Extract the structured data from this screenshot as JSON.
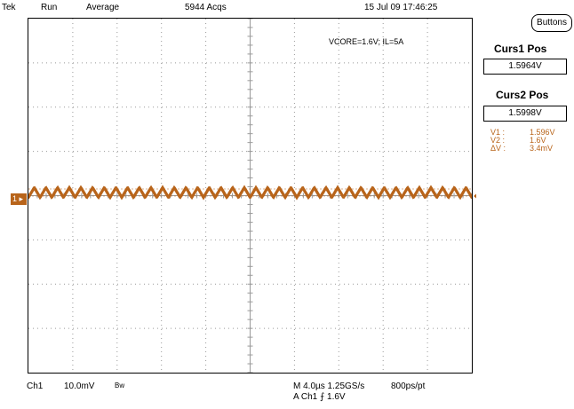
{
  "status_bar": {
    "brand": "Tek",
    "mode": "Run",
    "acquisition": "Average",
    "acq_count": "5944 Acqs",
    "timestamp": "15 Jul 09 17:46:25"
  },
  "annotation": "VCORE=1.6V; IL=5A",
  "channel_marker": "1",
  "bottom_bar": {
    "channel": "Ch1",
    "scale": "10.0mV",
    "bandwidth": "Bw",
    "timebase": "M 4.0µs 1.25GS/s",
    "record": "800ps/pt",
    "trigger": "A  Ch1  ⨍  1.6V"
  },
  "side_panel": {
    "buttons_label": "Buttons",
    "curs1_label": "Curs1 Pos",
    "curs1_value": "1.5964V",
    "curs2_label": "Curs2 Pos",
    "curs2_value": "1.5998V",
    "readouts": [
      {
        "key": "V1 :",
        "value": "1.596V"
      },
      {
        "key": "V2 :",
        "value": "1.6V"
      },
      {
        "key": "ΔV :",
        "value": "3.4mV"
      }
    ]
  },
  "colors": {
    "trace": "#b8641a",
    "trigger_marker": "#e07b1a",
    "grid": "#9a9a9a"
  },
  "waveform": {
    "level_v": 1.6,
    "ripple_mv": 3.4,
    "cycles_visible": 38,
    "cursor1_v": 1.5964,
    "cursor2_v": 1.5998
  }
}
